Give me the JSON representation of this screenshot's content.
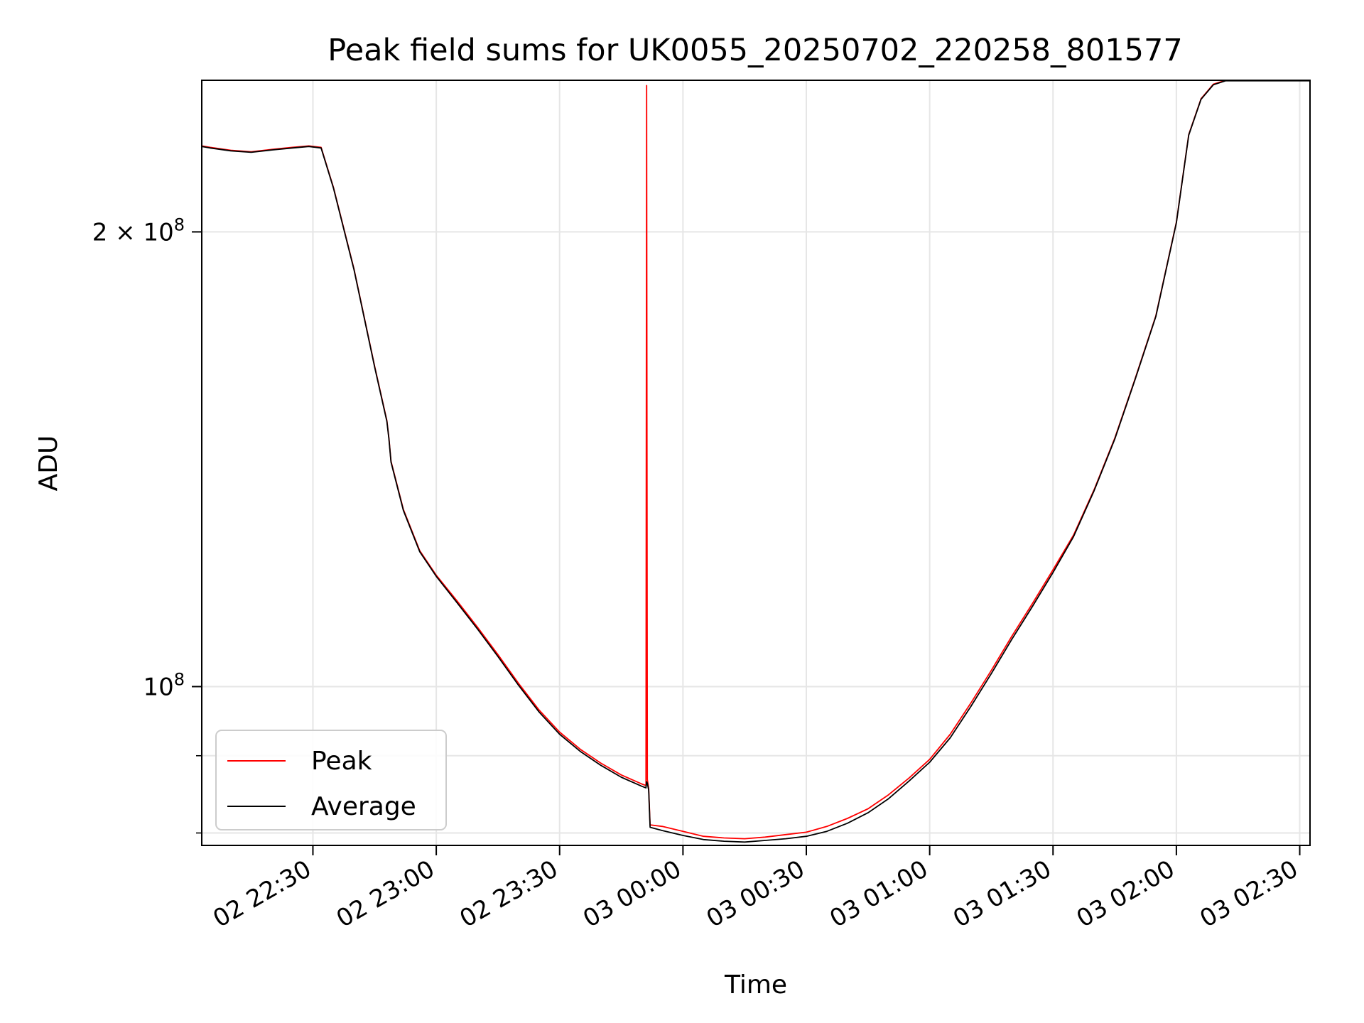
{
  "chart_data": {
    "type": "line",
    "title": "Peak field sums for UK0055_20250702_220258_801577",
    "xlabel": "Time",
    "ylabel": "ADU",
    "x_axis": {
      "type": "datetime",
      "range": [
        "2025-07-02 22:02:58",
        "2025-07-03 02:32:30"
      ],
      "ticks": [
        {
          "value": "2025-07-02 22:30",
          "label": "02 22:30"
        },
        {
          "value": "2025-07-02 23:00",
          "label": "02 23:00"
        },
        {
          "value": "2025-07-02 23:30",
          "label": "02 23:30"
        },
        {
          "value": "2025-07-03 00:00",
          "label": "03 00:00"
        },
        {
          "value": "2025-07-03 00:30",
          "label": "03 00:30"
        },
        {
          "value": "2025-07-03 01:00",
          "label": "03 01:00"
        },
        {
          "value": "2025-07-03 01:30",
          "label": "03 01:30"
        },
        {
          "value": "2025-07-03 02:00",
          "label": "03 02:00"
        },
        {
          "value": "2025-07-03 02:30",
          "label": "03 02:30"
        }
      ]
    },
    "y_axis": {
      "scale": "log",
      "range": [
        78500000,
        252000000
      ],
      "major_ticks": [
        {
          "value": 100000000,
          "label": "10^8",
          "base": "10",
          "exp": "8"
        },
        {
          "value": 200000000,
          "label": "2 × 10^8",
          "base": "2 × 10",
          "exp": "8"
        }
      ],
      "minor_ticks": [
        80000000,
        90000000
      ]
    },
    "grid": true,
    "legend_position": "lower-left",
    "series": [
      {
        "name": "Peak",
        "color": "#ff0000",
        "points": [
          [
            "2025-07-02 22:02:58",
            228000000
          ],
          [
            "2025-07-02 22:05",
            227500000
          ],
          [
            "2025-07-02 22:10",
            226500000
          ],
          [
            "2025-07-02 22:15",
            226000000
          ],
          [
            "2025-07-02 22:20",
            226800000
          ],
          [
            "2025-07-02 22:25",
            227500000
          ],
          [
            "2025-07-02 22:29",
            228000000
          ],
          [
            "2025-07-02 22:32",
            227500000
          ],
          [
            "2025-07-02 22:35",
            214000000
          ],
          [
            "2025-07-02 22:40",
            189000000
          ],
          [
            "2025-07-02 22:45",
            163000000
          ],
          [
            "2025-07-02 22:48",
            150000000
          ],
          [
            "2025-07-02 22:48:30",
            146000000
          ],
          [
            "2025-07-02 22:49",
            141000000
          ],
          [
            "2025-07-02 22:52",
            131000000
          ],
          [
            "2025-07-02 22:56",
            123000000
          ],
          [
            "2025-07-02 23:00",
            118500000
          ],
          [
            "2025-07-02 23:05",
            114000000
          ],
          [
            "2025-07-02 23:10",
            109500000
          ],
          [
            "2025-07-02 23:15",
            105000000
          ],
          [
            "2025-07-02 23:20",
            100500000
          ],
          [
            "2025-07-02 23:25",
            96500000
          ],
          [
            "2025-07-02 23:30",
            93300000
          ],
          [
            "2025-07-02 23:35",
            90900000
          ],
          [
            "2025-07-02 23:40",
            89000000
          ],
          [
            "2025-07-02 23:45",
            87400000
          ],
          [
            "2025-07-02 23:50",
            86200000
          ],
          [
            "2025-07-02 23:51",
            86000000
          ],
          [
            "2025-07-02 23:51:10",
            250000000
          ],
          [
            "2025-07-02 23:51:20",
            86800000
          ],
          [
            "2025-07-02 23:51:40",
            85600000
          ],
          [
            "2025-07-02 23:52",
            81000000
          ],
          [
            "2025-07-02 23:55",
            80800000
          ],
          [
            "2025-07-03 00:00",
            80200000
          ],
          [
            "2025-07-03 00:05",
            79600000
          ],
          [
            "2025-07-03 00:10",
            79400000
          ],
          [
            "2025-07-03 00:15",
            79300000
          ],
          [
            "2025-07-03 00:20",
            79500000
          ],
          [
            "2025-07-03 00:25",
            79800000
          ],
          [
            "2025-07-03 00:30",
            80100000
          ],
          [
            "2025-07-03 00:35",
            80800000
          ],
          [
            "2025-07-03 00:40",
            81800000
          ],
          [
            "2025-07-03 00:45",
            83000000
          ],
          [
            "2025-07-03 00:50",
            84800000
          ],
          [
            "2025-07-03 00:55",
            87000000
          ],
          [
            "2025-07-03 01:00",
            89500000
          ],
          [
            "2025-07-03 01:05",
            93000000
          ],
          [
            "2025-07-03 01:10",
            97500000
          ],
          [
            "2025-07-03 01:15",
            102500000
          ],
          [
            "2025-07-03 01:20",
            108000000
          ],
          [
            "2025-07-03 01:25",
            113500000
          ],
          [
            "2025-07-03 01:30",
            119500000
          ],
          [
            "2025-07-03 01:35",
            126000000
          ],
          [
            "2025-07-03 01:40",
            135000000
          ],
          [
            "2025-07-03 01:45",
            146000000
          ],
          [
            "2025-07-03 01:50",
            160000000
          ],
          [
            "2025-07-03 01:55",
            176000000
          ],
          [
            "2025-07-03 02:00",
            203000000
          ],
          [
            "2025-07-03 02:03",
            232000000
          ],
          [
            "2025-07-03 02:06",
            245000000
          ],
          [
            "2025-07-03 02:09",
            250500000
          ],
          [
            "2025-07-03 02:12",
            252000000
          ],
          [
            "2025-07-03 02:30",
            252000000
          ],
          [
            "2025-07-03 02:32:30",
            252000000
          ]
        ]
      },
      {
        "name": "Average",
        "color": "#000000",
        "points": [
          [
            "2025-07-02 22:02:58",
            227800000
          ],
          [
            "2025-07-02 22:05",
            227300000
          ],
          [
            "2025-07-02 22:10",
            226300000
          ],
          [
            "2025-07-02 22:15",
            225800000
          ],
          [
            "2025-07-02 22:20",
            226600000
          ],
          [
            "2025-07-02 22:25",
            227300000
          ],
          [
            "2025-07-02 22:29",
            227800000
          ],
          [
            "2025-07-02 22:32",
            227300000
          ],
          [
            "2025-07-02 22:35",
            213800000
          ],
          [
            "2025-07-02 22:40",
            188800000
          ],
          [
            "2025-07-02 22:45",
            162800000
          ],
          [
            "2025-07-02 22:48",
            149800000
          ],
          [
            "2025-07-02 22:48:30",
            145800000
          ],
          [
            "2025-07-02 22:49",
            140800000
          ],
          [
            "2025-07-02 22:52",
            130800000
          ],
          [
            "2025-07-02 22:56",
            122800000
          ],
          [
            "2025-07-02 23:00",
            118300000
          ],
          [
            "2025-07-02 23:05",
            113700000
          ],
          [
            "2025-07-02 23:10",
            109200000
          ],
          [
            "2025-07-02 23:15",
            104700000
          ],
          [
            "2025-07-02 23:20",
            100200000
          ],
          [
            "2025-07-02 23:25",
            96200000
          ],
          [
            "2025-07-02 23:30",
            93000000
          ],
          [
            "2025-07-02 23:35",
            90600000
          ],
          [
            "2025-07-02 23:40",
            88700000
          ],
          [
            "2025-07-02 23:45",
            87100000
          ],
          [
            "2025-07-02 23:50",
            85900000
          ],
          [
            "2025-07-02 23:51",
            85700000
          ],
          [
            "2025-07-02 23:51:10",
            86500000
          ],
          [
            "2025-07-02 23:51:20",
            86300000
          ],
          [
            "2025-07-02 23:51:40",
            85400000
          ],
          [
            "2025-07-02 23:52",
            80700000
          ],
          [
            "2025-07-02 23:55",
            80300000
          ],
          [
            "2025-07-03 00:00",
            79700000
          ],
          [
            "2025-07-03 00:05",
            79200000
          ],
          [
            "2025-07-03 00:10",
            79000000
          ],
          [
            "2025-07-03 00:15",
            78900000
          ],
          [
            "2025-07-03 00:20",
            79100000
          ],
          [
            "2025-07-03 00:25",
            79300000
          ],
          [
            "2025-07-03 00:30",
            79600000
          ],
          [
            "2025-07-03 00:35",
            80200000
          ],
          [
            "2025-07-03 00:40",
            81200000
          ],
          [
            "2025-07-03 00:45",
            82500000
          ],
          [
            "2025-07-03 00:50",
            84300000
          ],
          [
            "2025-07-03 00:55",
            86600000
          ],
          [
            "2025-07-03 01:00",
            89100000
          ],
          [
            "2025-07-03 01:05",
            92500000
          ],
          [
            "2025-07-03 01:10",
            97000000
          ],
          [
            "2025-07-03 01:15",
            102000000
          ],
          [
            "2025-07-03 01:20",
            107500000
          ],
          [
            "2025-07-03 01:25",
            113000000
          ],
          [
            "2025-07-03 01:30",
            119000000
          ],
          [
            "2025-07-03 01:35",
            125700000
          ],
          [
            "2025-07-03 01:40",
            134800000
          ],
          [
            "2025-07-03 01:45",
            145800000
          ],
          [
            "2025-07-03 01:50",
            159800000
          ],
          [
            "2025-07-03 01:55",
            175800000
          ],
          [
            "2025-07-03 02:00",
            202800000
          ],
          [
            "2025-07-03 02:03",
            231800000
          ],
          [
            "2025-07-03 02:06",
            244800000
          ],
          [
            "2025-07-03 02:09",
            250300000
          ],
          [
            "2025-07-03 02:12",
            251800000
          ],
          [
            "2025-07-03 02:30",
            251800000
          ],
          [
            "2025-07-03 02:32:30",
            251800000
          ]
        ]
      }
    ]
  }
}
